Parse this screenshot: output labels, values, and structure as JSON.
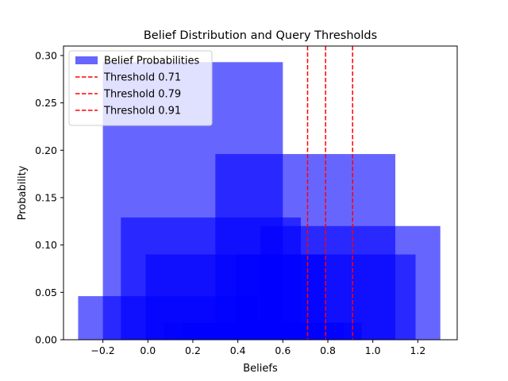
{
  "chart_data": {
    "type": "bar",
    "title": "Belief Distribution and Query Thresholds",
    "xlabel": "Beliefs",
    "ylabel": "Probability",
    "xlim": [
      -0.375,
      1.375
    ],
    "ylim": [
      0,
      0.31
    ],
    "xticks": [
      -0.2,
      0.0,
      0.2,
      0.4,
      0.6,
      0.8,
      1.0,
      1.2
    ],
    "xtick_labels": [
      "−0.2",
      "0.0",
      "0.2",
      "0.4",
      "0.6",
      "0.8",
      "1.0",
      "1.2"
    ],
    "yticks": [
      0,
      0.05,
      0.1,
      0.15,
      0.2,
      0.25,
      0.3
    ],
    "ytick_labels": [
      "0.00",
      "0.05",
      "0.10",
      "0.15",
      "0.20",
      "0.25",
      "0.30"
    ],
    "grid": false,
    "legend_position": "top-left",
    "bar_color": "#0000ff",
    "bar_opacity": 0.6,
    "series": [
      {
        "name": "Belief Probabilities",
        "bars": [
          {
            "x": 0.2,
            "width": 0.8,
            "value": 0.293
          },
          {
            "x": 0.7,
            "width": 0.8,
            "value": 0.196
          },
          {
            "x": 0.9,
            "width": 0.8,
            "value": 0.12
          },
          {
            "x": 0.28,
            "width": 0.8,
            "value": 0.129
          },
          {
            "x": 0.39,
            "width": 0.8,
            "value": 0.09
          },
          {
            "x": 0.79,
            "width": 0.8,
            "value": 0.09
          },
          {
            "x": 0.09,
            "width": 0.8,
            "value": 0.046
          },
          {
            "x": 0.47,
            "width": 0.8,
            "value": 0.018
          },
          {
            "x": 0.55,
            "width": 0.8,
            "value": 0.018
          }
        ]
      }
    ],
    "thresholds": [
      {
        "name": "Threshold 0.71",
        "value": 0.71,
        "color": "#ff0000"
      },
      {
        "name": "Threshold 0.79",
        "value": 0.79,
        "color": "#ff0000"
      },
      {
        "name": "Threshold 0.91",
        "value": 0.91,
        "color": "#ff0000"
      }
    ]
  }
}
